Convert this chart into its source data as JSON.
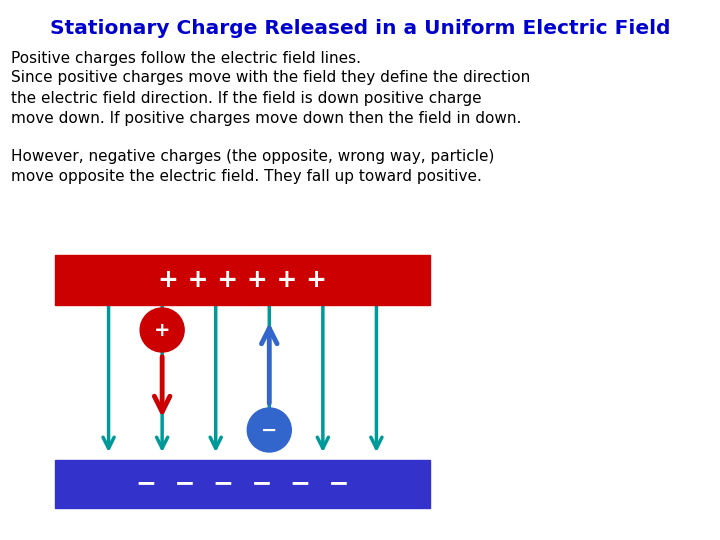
{
  "title": "Stationary Charge Released in a Uniform Electric Field",
  "title_color": "#0000CC",
  "title_fontsize": 14.5,
  "line1": "Positive charges follow the electric field lines.",
  "line2": "Since positive charges move with the field they define the direction\nthe electric field direction. If the field is down positive charge\nmove down. If positive charges move down then the field in down.",
  "line3": "However, negative charges (the opposite, wrong way, particle)\nmove opposite the electric field. They fall up toward positive.",
  "text_fontsize": 11,
  "bg_color": "#ffffff",
  "top_plate_color": "#cc0000",
  "bottom_plate_color": "#3333cc",
  "top_plus_signs": "+ + + + + +",
  "bottom_minus_signs": "−  −  −  −  −  −",
  "field_line_color": "#009999",
  "pos_charge_color": "#cc0000",
  "neg_charge_color": "#3366cc",
  "red_arrow_color": "#cc0000",
  "blue_arrow_color": "#3366cc"
}
